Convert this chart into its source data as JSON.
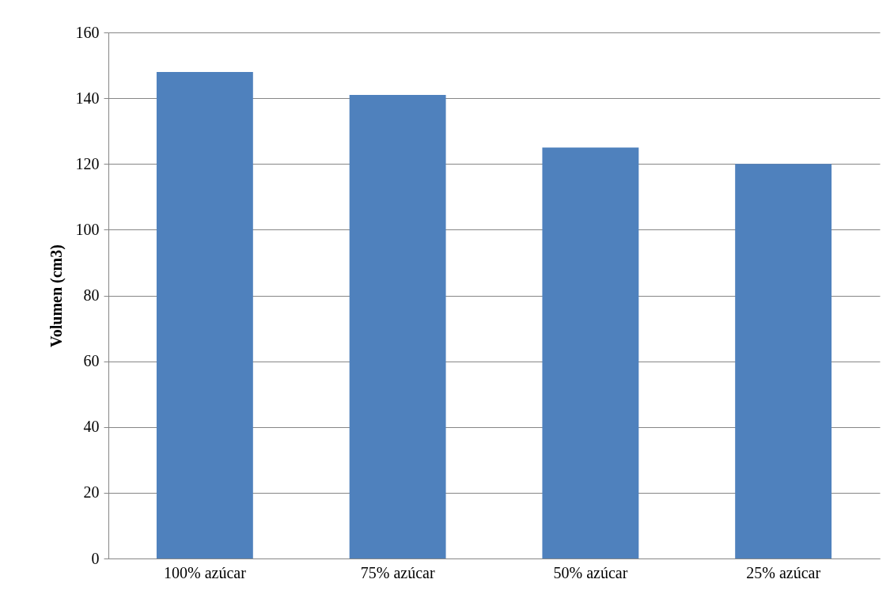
{
  "chart_data": {
    "type": "bar",
    "ylabel": "Volumen (cm3)",
    "categories": [
      "100% azúcar",
      "75% azúcar",
      "50% azúcar",
      "25% azúcar"
    ],
    "values": [
      148,
      141,
      125,
      120
    ],
    "color": "#4f81bd",
    "ylim": [
      0,
      160
    ],
    "yticks": [
      0,
      20,
      40,
      60,
      80,
      100,
      120,
      140,
      160
    ],
    "grid": "y"
  }
}
